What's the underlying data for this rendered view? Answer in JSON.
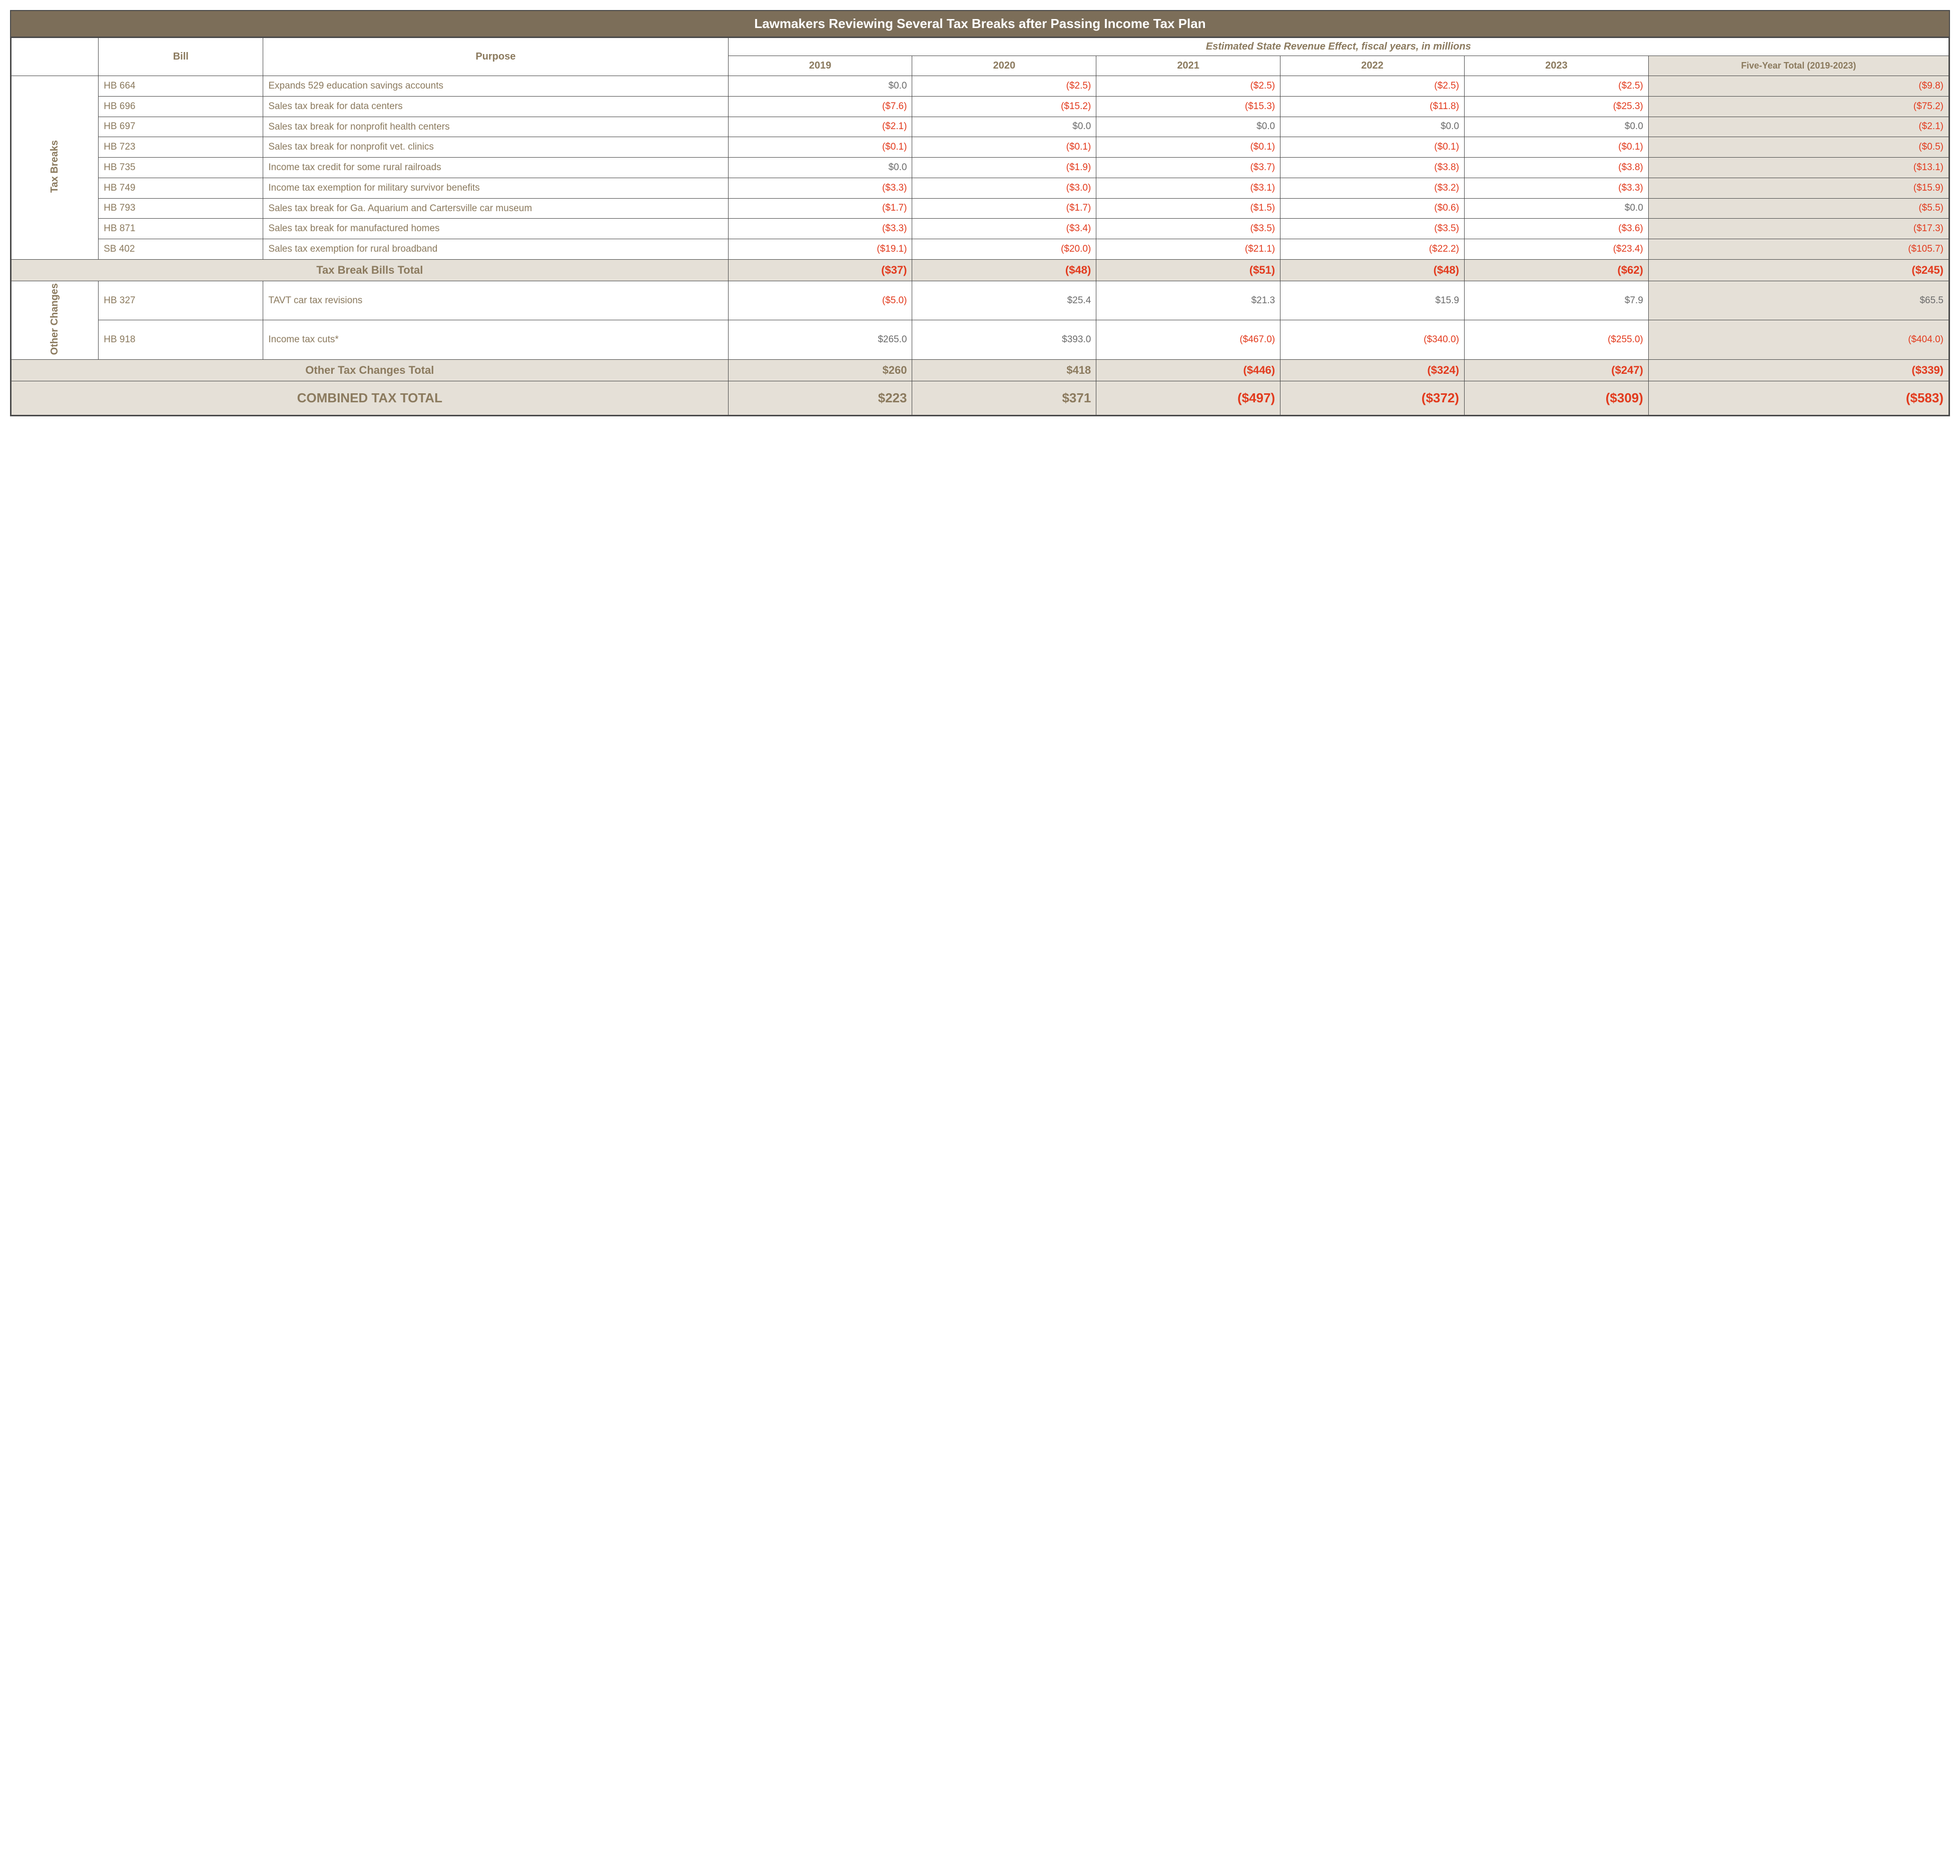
{
  "title": "Lawmakers Reviewing Several Tax Breaks after Passing Income Tax Plan",
  "headers": {
    "spanner": "Estimated State Revenue Effect, fiscal years, in millions",
    "bill": "Bill",
    "purpose": "Purpose",
    "years": [
      "2019",
      "2020",
      "2021",
      "2022",
      "2023"
    ],
    "total": "Five-Year Total (2019-2023)"
  },
  "groups": {
    "taxBreaks": {
      "label": "Tax Breaks"
    },
    "other": {
      "label": "Other Changes"
    }
  },
  "rows": {
    "r0": {
      "bill": "HB 664",
      "purpose": "Expands 529 education savings accounts",
      "y": [
        "$0.0",
        "($2.5)",
        "($2.5)",
        "($2.5)",
        "($2.5)"
      ],
      "total": "($9.8)",
      "neg": [
        false,
        true,
        true,
        true,
        true
      ],
      "totalNeg": true
    },
    "r1": {
      "bill": "HB 696",
      "purpose": "Sales tax break for data centers",
      "y": [
        "($7.6)",
        "($15.2)",
        "($15.3)",
        "($11.8)",
        "($25.3)"
      ],
      "total": "($75.2)",
      "neg": [
        true,
        true,
        true,
        true,
        true
      ],
      "totalNeg": true
    },
    "r2": {
      "bill": "HB 697",
      "purpose": "Sales tax break for nonprofit health centers",
      "y": [
        "($2.1)",
        "$0.0",
        "$0.0",
        "$0.0",
        "$0.0"
      ],
      "total": "($2.1)",
      "neg": [
        true,
        false,
        false,
        false,
        false
      ],
      "totalNeg": true
    },
    "r3": {
      "bill": "HB 723",
      "purpose": "Sales tax break for nonprofit vet. clinics",
      "y": [
        "($0.1)",
        "($0.1)",
        "($0.1)",
        "($0.1)",
        "($0.1)"
      ],
      "total": "($0.5)",
      "neg": [
        true,
        true,
        true,
        true,
        true
      ],
      "totalNeg": true
    },
    "r4": {
      "bill": "HB 735",
      "purpose": "Income tax credit for some rural railroads",
      "y": [
        "$0.0",
        "($1.9)",
        "($3.7)",
        "($3.8)",
        "($3.8)"
      ],
      "total": "($13.1)",
      "neg": [
        false,
        true,
        true,
        true,
        true
      ],
      "totalNeg": true
    },
    "r5": {
      "bill": "HB 749",
      "purpose": "Income tax exemption for military survivor benefits",
      "y": [
        "($3.3)",
        "($3.0)",
        "($3.1)",
        "($3.2)",
        "($3.3)"
      ],
      "total": "($15.9)",
      "neg": [
        true,
        true,
        true,
        true,
        true
      ],
      "totalNeg": true
    },
    "r6": {
      "bill": "HB 793",
      "purpose": "Sales tax break for Ga. Aquarium and Cartersville car museum",
      "y": [
        "($1.7)",
        "($1.7)",
        "($1.5)",
        "($0.6)",
        "$0.0"
      ],
      "total": "($5.5)",
      "neg": [
        true,
        true,
        true,
        true,
        false
      ],
      "totalNeg": true
    },
    "r7": {
      "bill": "HB 871",
      "purpose": "Sales tax break for manufactured homes",
      "y": [
        "($3.3)",
        "($3.4)",
        "($3.5)",
        "($3.5)",
        "($3.6)"
      ],
      "total": "($17.3)",
      "neg": [
        true,
        true,
        true,
        true,
        true
      ],
      "totalNeg": true
    },
    "r8": {
      "bill": "SB 402",
      "purpose": "Sales tax exemption for rural broadband",
      "y": [
        "($19.1)",
        "($20.0)",
        "($21.1)",
        "($22.2)",
        "($23.4)"
      ],
      "total": "($105.7)",
      "neg": [
        true,
        true,
        true,
        true,
        true
      ],
      "totalNeg": true
    },
    "o0": {
      "bill": "HB 327",
      "purpose": "TAVT car tax revisions",
      "y": [
        "($5.0)",
        "$25.4",
        "$21.3",
        "$15.9",
        "$7.9"
      ],
      "total": "$65.5",
      "neg": [
        true,
        false,
        false,
        false,
        false
      ],
      "totalNeg": false
    },
    "o1": {
      "bill": "HB 918",
      "purpose": "Income tax cuts*",
      "y": [
        "$265.0",
        "$393.0",
        "($467.0)",
        "($340.0)",
        "($255.0)"
      ],
      "total": "($404.0)",
      "neg": [
        false,
        false,
        true,
        true,
        true
      ],
      "totalNeg": true
    }
  },
  "subtotals": {
    "taxBreaks": {
      "label": "Tax Break Bills Total",
      "y": [
        "($37)",
        "($48)",
        "($51)",
        "($48)",
        "($62)"
      ],
      "total": "($245)",
      "neg": [
        true,
        true,
        true,
        true,
        true
      ],
      "totalNeg": true
    },
    "other": {
      "label": "Other Tax Changes Total",
      "y": [
        "$260",
        "$418",
        "($446)",
        "($324)",
        "($247)"
      ],
      "total": "($339)",
      "neg": [
        false,
        false,
        true,
        true,
        true
      ],
      "totalNeg": true
    }
  },
  "grand": {
    "label": "COMBINED TAX TOTAL",
    "y": [
      "$223",
      "$371",
      "($497)",
      "($372)",
      "($309)"
    ],
    "total": "($583)",
    "neg": [
      false,
      false,
      true,
      true,
      true
    ],
    "totalNeg": true
  },
  "colors": {
    "headerBg": "#7c6e59",
    "headerText": "#ffffff",
    "accentText": "#8b7a5e",
    "negText": "#e23a1d",
    "posText": "#6b6b6b",
    "totalBg": "#e5e0d7",
    "border": "#4a4a4a"
  }
}
